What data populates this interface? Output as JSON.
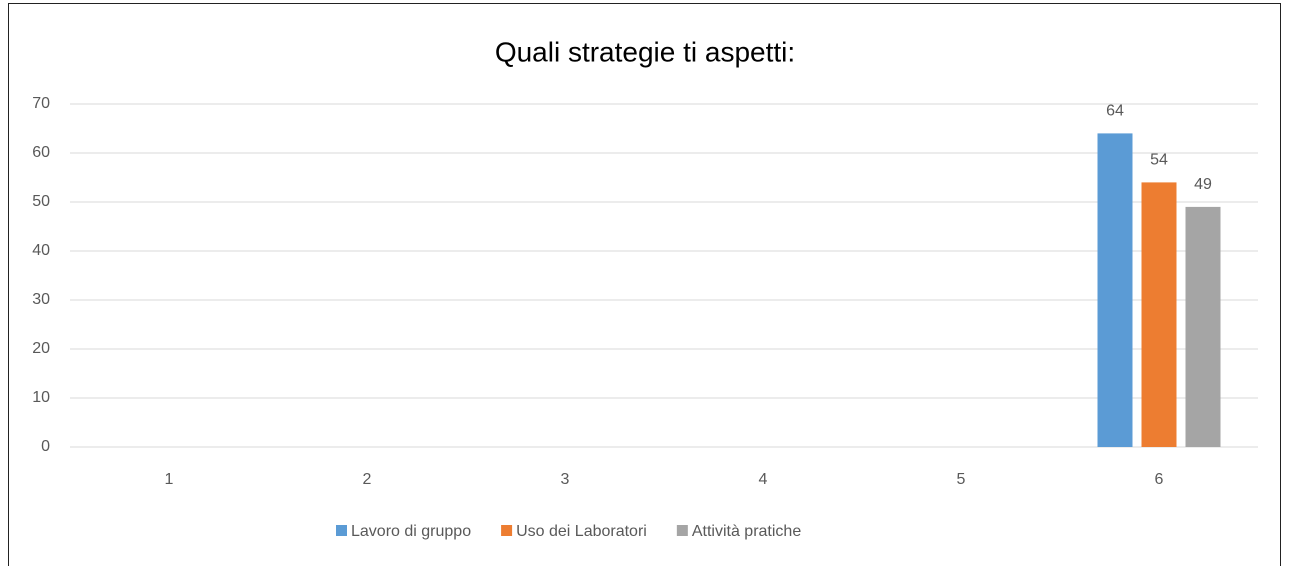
{
  "chart_data": {
    "type": "bar",
    "title": "Quali strategie ti aspetti:",
    "categories": [
      "1",
      "2",
      "3",
      "4",
      "5",
      "6"
    ],
    "series": [
      {
        "name": "Lavoro di gruppo",
        "color": "#5b9bd5",
        "values": [
          null,
          null,
          null,
          null,
          null,
          64
        ]
      },
      {
        "name": "Uso dei Laboratori",
        "color": "#ed7d31",
        "values": [
          null,
          null,
          null,
          null,
          null,
          54
        ]
      },
      {
        "name": "Attività pratiche",
        "color": "#a5a5a5",
        "values": [
          null,
          null,
          null,
          null,
          null,
          49
        ]
      }
    ],
    "ylim": [
      0,
      70
    ],
    "yticks": [
      0,
      10,
      20,
      30,
      40,
      50,
      60,
      70
    ],
    "grid": true,
    "legend": "bottom"
  }
}
